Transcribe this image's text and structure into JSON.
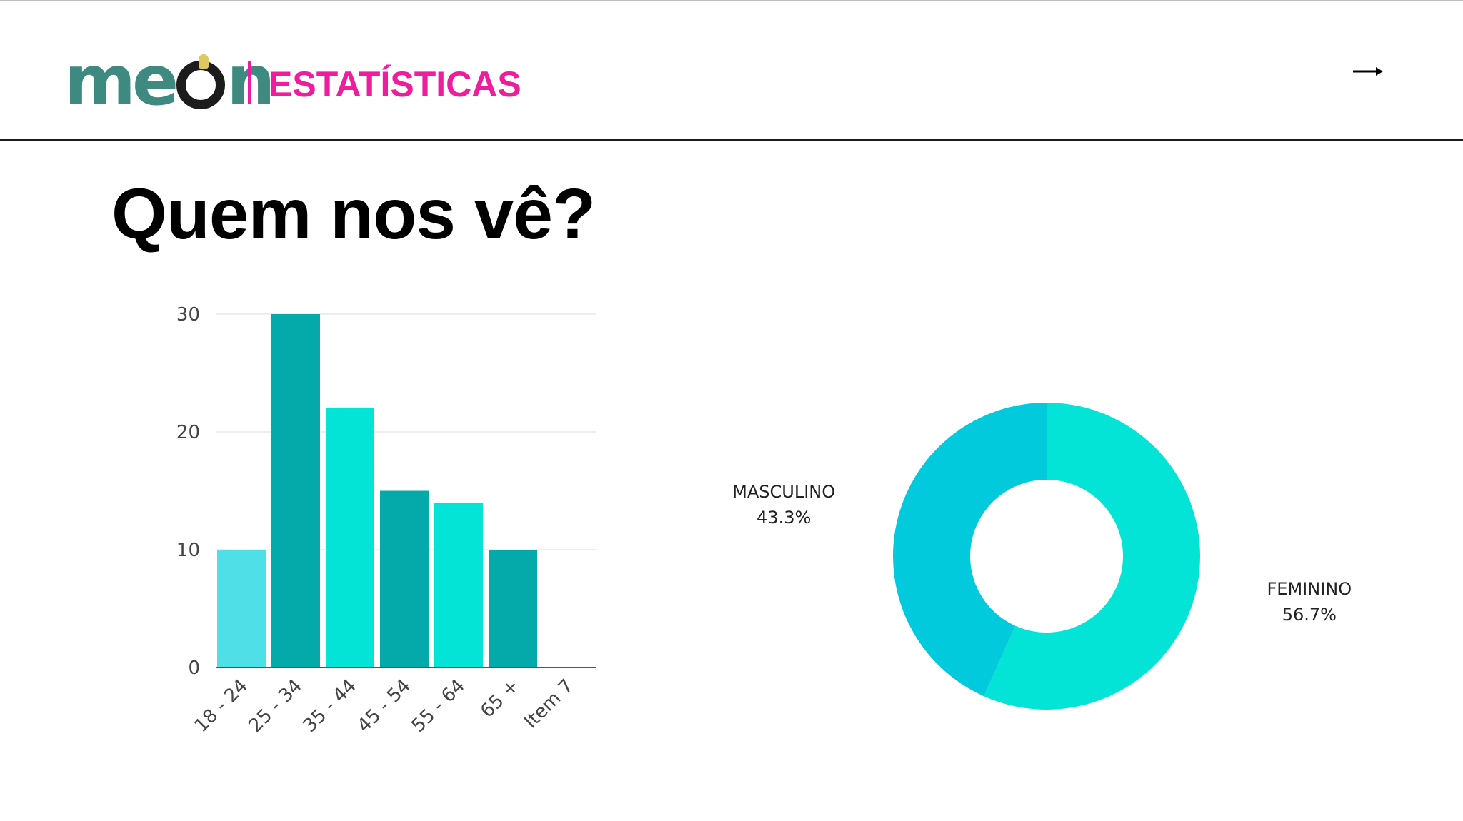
{
  "header": {
    "logo_text": "meon",
    "section_title": "ESTATÍSTICAS",
    "next_icon": "arrow-right-icon"
  },
  "page": {
    "title": "Quem nos vê?"
  },
  "colors": {
    "brand_teal": "#3f8a80",
    "brand_pink": "#f01c9e",
    "bar_light": "#4fdfe6",
    "bar_dark": "#04aaa9",
    "bar_mid": "#03e4d6",
    "pie_masculino": "#00cadb",
    "pie_feminino": "#03e4d6"
  },
  "chart_data": [
    {
      "type": "bar",
      "categories": [
        "18 - 24",
        "25 - 34",
        "35 - 44",
        "45 - 54",
        "55 - 64",
        "65 +",
        "Item 7"
      ],
      "values": [
        10,
        30,
        22,
        15,
        14,
        10,
        0
      ],
      "ylim": [
        0,
        30
      ],
      "yticks": [
        0,
        10,
        20,
        30
      ],
      "grid": true,
      "title": "",
      "xlabel": "",
      "ylabel": ""
    },
    {
      "type": "pie",
      "subtype": "donut",
      "slices": [
        {
          "label": "FEMININO",
          "value": 56.7,
          "display": "56.7%"
        },
        {
          "label": "MASCULINO",
          "value": 43.3,
          "display": "43.3%"
        }
      ]
    }
  ]
}
